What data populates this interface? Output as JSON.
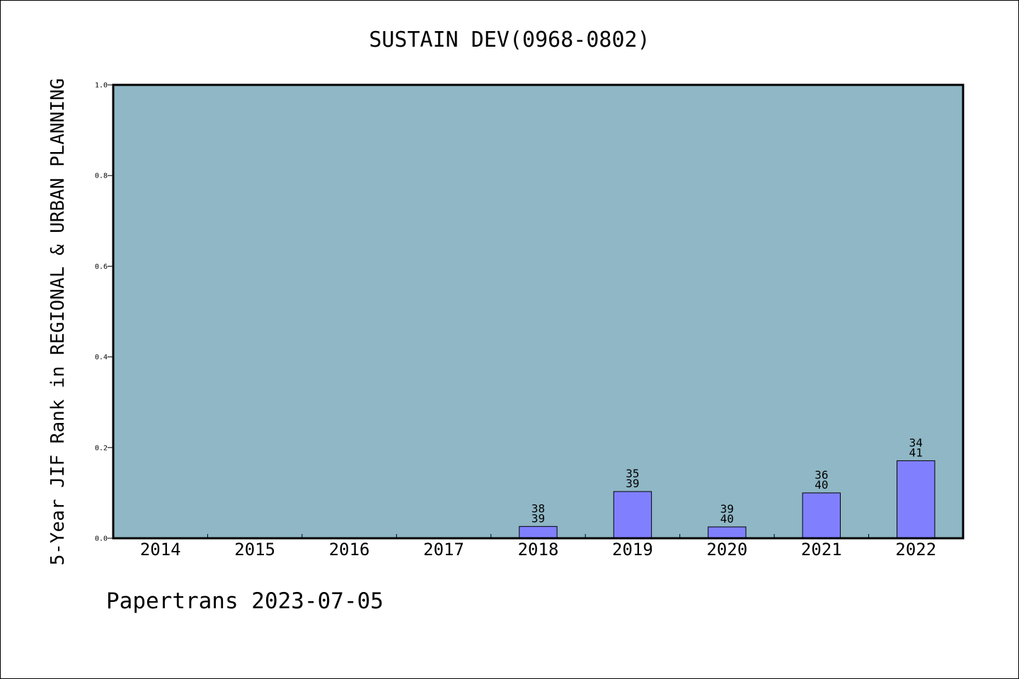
{
  "chart_data": {
    "type": "bar",
    "title": "SUSTAIN DEV(0968-0802)",
    "xlabel": "",
    "ylabel": "5-Year JIF Rank in REGIONAL & URBAN PLANNING",
    "categories": [
      "2014",
      "2015",
      "2016",
      "2017",
      "2018",
      "2019",
      "2020",
      "2021",
      "2022"
    ],
    "series": [
      {
        "values": [
          null,
          null,
          null,
          null,
          0.026,
          0.103,
          0.025,
          0.1,
          0.171
        ],
        "rank": [
          null,
          null,
          null,
          null,
          "38",
          "35",
          "39",
          "36",
          "34"
        ],
        "total": [
          null,
          null,
          null,
          null,
          "39",
          "39",
          "40",
          "40",
          "41"
        ]
      }
    ],
    "ylim": [
      0,
      1.0
    ],
    "yticks": [
      "0.0",
      "0.2",
      "0.4",
      "0.6",
      "0.8",
      "1.0"
    ],
    "grid": false,
    "colors": {
      "plot_background": "#8fb7c5",
      "bar_fill": "#8080ff",
      "bar_stroke": "#000000"
    }
  },
  "footer": {
    "text": "Papertrans 2023-07-05"
  }
}
